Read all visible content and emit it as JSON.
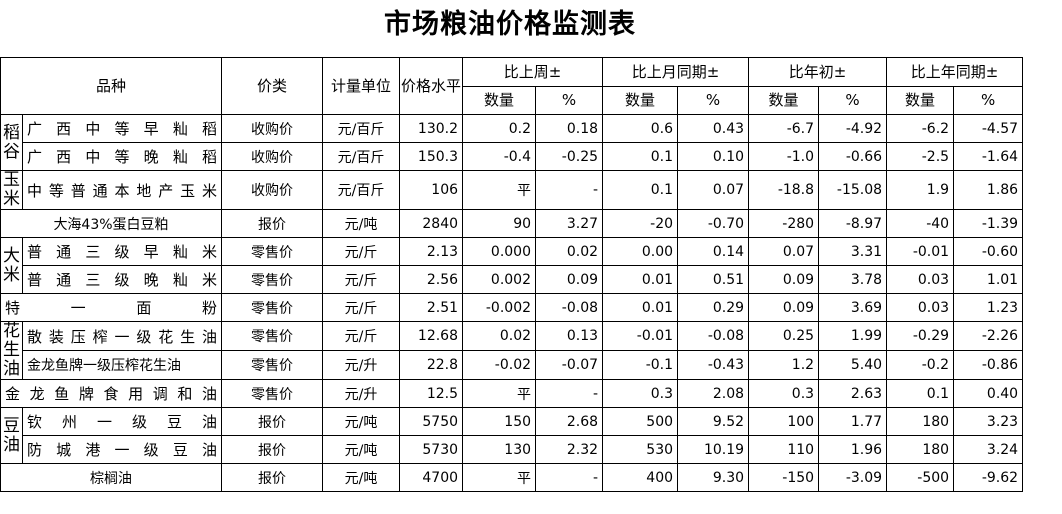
{
  "title": "市场粮油价格监测表",
  "headers": {
    "variety": "品种",
    "price_type": "价类",
    "unit": "计量单位",
    "price_level": "价格水平",
    "vs_last_week": "比上周±",
    "vs_last_month": "比上月同期±",
    "vs_year_start": "比年初±",
    "vs_last_year": "比上年同期±",
    "qty": "数量",
    "pct": "%"
  },
  "groups": {
    "rice_paddy": "稻谷",
    "corn": "玉米",
    "rice": "大米",
    "peanut_oil": "花生油",
    "soy_oil": "豆油"
  },
  "rows": [
    {
      "name": "广西中等早籼稻",
      "type": "收购价",
      "unit": "元/百斤",
      "price": "130.2",
      "w_q": "0.2",
      "w_p": "0.18",
      "m_q": "0.6",
      "m_p": "0.43",
      "y_q": "-6.7",
      "y_p": "-4.92",
      "ly_q": "-6.2",
      "ly_p": "-4.57"
    },
    {
      "name": "广西中等晚籼稻",
      "type": "收购价",
      "unit": "元/百斤",
      "price": "150.3",
      "w_q": "-0.4",
      "w_p": "-0.25",
      "m_q": "0.1",
      "m_p": "0.10",
      "y_q": "-1.0",
      "y_p": "-0.66",
      "ly_q": "-2.5",
      "ly_p": "-1.64"
    },
    {
      "name": "中等普通本地产玉米",
      "type": "收购价",
      "unit": "元/百斤",
      "price": "106",
      "w_q": "平",
      "w_p": "-",
      "m_q": "0.1",
      "m_p": "0.07",
      "y_q": "-18.8",
      "y_p": "-15.08",
      "ly_q": "1.9",
      "ly_p": "1.86"
    },
    {
      "name": "大海43%蛋白豆粕",
      "type": "报价",
      "unit": "元/吨",
      "price": "2840",
      "w_q": "90",
      "w_p": "3.27",
      "m_q": "-20",
      "m_p": "-0.70",
      "y_q": "-280",
      "y_p": "-8.97",
      "ly_q": "-40",
      "ly_p": "-1.39"
    },
    {
      "name": "普通三级早籼米",
      "type": "零售价",
      "unit": "元/斤",
      "price": "2.13",
      "w_q": "0.000",
      "w_p": "0.02",
      "m_q": "0.00",
      "m_p": "0.14",
      "y_q": "0.07",
      "y_p": "3.31",
      "ly_q": "-0.01",
      "ly_p": "-0.60"
    },
    {
      "name": "普通三级晚籼米",
      "type": "零售价",
      "unit": "元/斤",
      "price": "2.56",
      "w_q": "0.002",
      "w_p": "0.09",
      "m_q": "0.01",
      "m_p": "0.51",
      "y_q": "0.09",
      "y_p": "3.78",
      "ly_q": "0.03",
      "ly_p": "1.01"
    },
    {
      "name": "特一面粉",
      "type": "零售价",
      "unit": "元/斤",
      "price": "2.51",
      "w_q": "-0.002",
      "w_p": "-0.08",
      "m_q": "0.01",
      "m_p": "0.29",
      "y_q": "0.09",
      "y_p": "3.69",
      "ly_q": "0.03",
      "ly_p": "1.23"
    },
    {
      "name": "散装压榨一级花生油",
      "type": "零售价",
      "unit": "元/斤",
      "price": "12.68",
      "w_q": "0.02",
      "w_p": "0.13",
      "m_q": "-0.01",
      "m_p": "-0.08",
      "y_q": "0.25",
      "y_p": "1.99",
      "ly_q": "-0.29",
      "ly_p": "-2.26"
    },
    {
      "name": "金龙鱼牌一级压榨花生油",
      "type": "零售价",
      "unit": "元/升",
      "price": "22.8",
      "w_q": "-0.02",
      "w_p": "-0.07",
      "m_q": "-0.1",
      "m_p": "-0.43",
      "y_q": "1.2",
      "y_p": "5.40",
      "ly_q": "-0.2",
      "ly_p": "-0.86"
    },
    {
      "name": "金龙鱼牌食用调和油",
      "type": "零售价",
      "unit": "元/升",
      "price": "12.5",
      "w_q": "平",
      "w_p": "-",
      "m_q": "0.3",
      "m_p": "2.08",
      "y_q": "0.3",
      "y_p": "2.63",
      "ly_q": "0.1",
      "ly_p": "0.40"
    },
    {
      "name": "钦州一级豆油",
      "type": "报价",
      "unit": "元/吨",
      "price": "5750",
      "w_q": "150",
      "w_p": "2.68",
      "m_q": "500",
      "m_p": "9.52",
      "y_q": "100",
      "y_p": "1.77",
      "ly_q": "180",
      "ly_p": "3.23"
    },
    {
      "name": "防城港一级豆油",
      "type": "报价",
      "unit": "元/吨",
      "price": "5730",
      "w_q": "130",
      "w_p": "2.32",
      "m_q": "530",
      "m_p": "10.19",
      "y_q": "110",
      "y_p": "1.96",
      "ly_q": "180",
      "ly_p": "3.24"
    },
    {
      "name": "棕榈油",
      "type": "报价",
      "unit": "元/吨",
      "price": "4700",
      "w_q": "平",
      "w_p": "-",
      "m_q": "400",
      "m_p": "9.30",
      "y_q": "-150",
      "y_p": "-3.09",
      "ly_q": "-500",
      "ly_p": "-9.62"
    }
  ]
}
